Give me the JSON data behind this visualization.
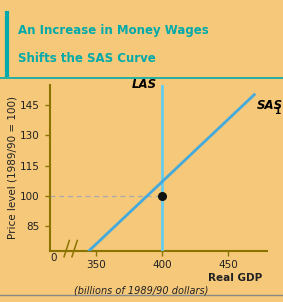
{
  "background_color": "#f5c87a",
  "plot_bg_color": "#f5c87a",
  "title_line1": "An Increase in Money Wages",
  "title_line2": "Shifts the SAS Curve",
  "title_color": "#00aaaa",
  "title_border_color": "#00aaaa",
  "xlabel": "Real GDP",
  "xlabel2": "(billions of 1989/90 dollars)",
  "ylabel": "Price level (1989/90 = 100)",
  "xlim": [
    315,
    480
  ],
  "ylim": [
    73,
    155
  ],
  "xticks": [
    350,
    400,
    450
  ],
  "yticks": [
    85,
    100,
    115,
    130,
    145
  ],
  "las_x": 400,
  "las_color": "#66ccee",
  "las_label": "LAS",
  "sas1_x1": 345,
  "sas1_y1": 73,
  "sas1_x2": 470,
  "sas1_y2": 150,
  "sas1_color": "#44aadd",
  "sas1_label": "SAS",
  "sas1_sub": "1",
  "intersection_x": 400,
  "intersection_y": 100,
  "dot_color": "#111111",
  "dashed_color": "#aaaaaa",
  "axis_color": "#8b7300",
  "tick_color": "#8b7300",
  "label_color": "#222222",
  "font_size_title": 8.5,
  "font_size_axis": 7.5,
  "font_size_ticks": 7.5,
  "font_size_labels": 8.5,
  "bottom_line_color": "#888888"
}
